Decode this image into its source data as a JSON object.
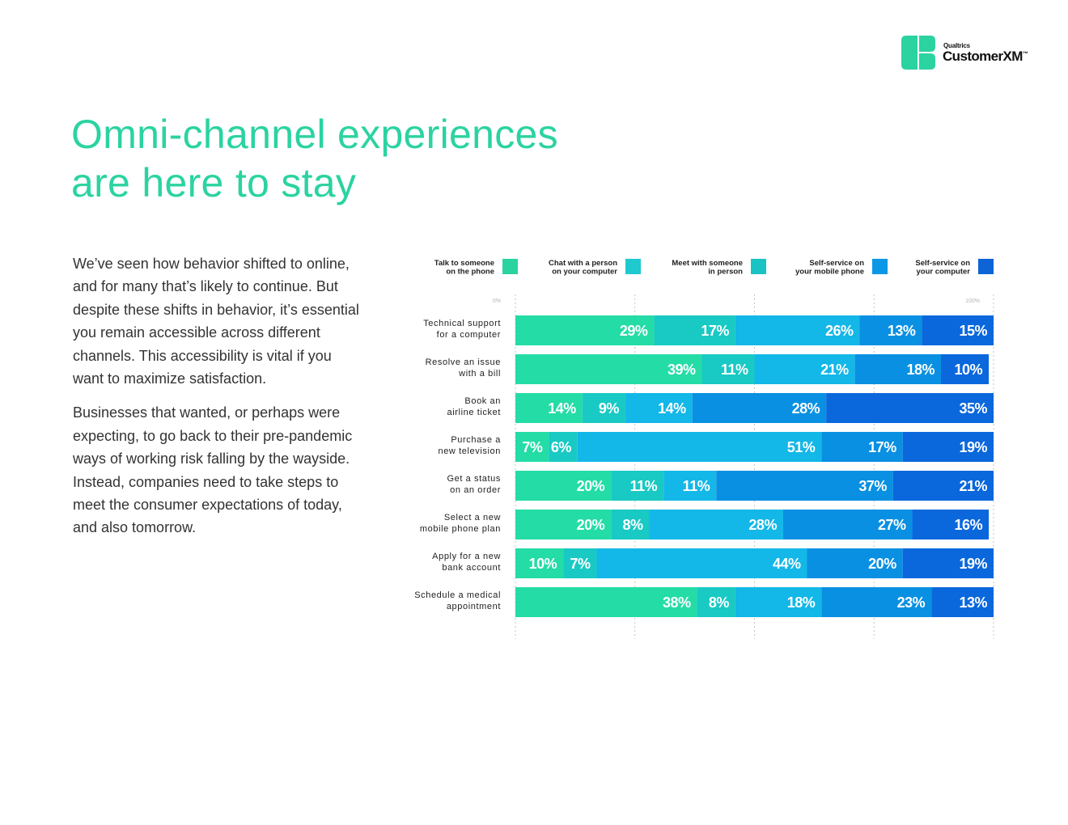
{
  "brand": {
    "small": "Qualtrics",
    "name": "CustomerXM",
    "tm": "™",
    "colors": {
      "mark": "#2bd3a1"
    }
  },
  "title": {
    "line1": "Omni-channel experiences",
    "line2": "are here to stay"
  },
  "body": {
    "paragraph1": "We’ve seen how behavior shifted to online, and for many that’s likely to continue. But despite these shifts in behavior, it’s essential you remain accessible across different channels. This accessibility is vital if you want to maximize satisfaction.",
    "paragraph2": "Businesses that wanted, or perhaps were expecting, to go back to their pre-pandemic ways of working risk falling by the wayside. Instead, companies need to take steps to meet the consumer expectations of today, and also tomorrow."
  },
  "chart_data": {
    "type": "bar",
    "orientation": "horizontal",
    "stacked": true,
    "xlim": [
      0,
      100
    ],
    "tick_labels": [
      "0%",
      "100%"
    ],
    "grid": true,
    "legend_position": "top",
    "categories": [
      [
        "Technical support",
        "for a computer"
      ],
      [
        "Resolve an issue",
        "with a bill"
      ],
      [
        "Book an",
        "airline ticket"
      ],
      [
        "Purchase a",
        "new television"
      ],
      [
        "Get a status",
        "on an order"
      ],
      [
        "Select a new",
        "mobile phone plan"
      ],
      [
        "Apply for a new",
        "bank account"
      ],
      [
        "Schedule a medical",
        "appointment"
      ]
    ],
    "series": [
      {
        "name": [
          "Talk to someone",
          "on the phone"
        ],
        "color": "#24dca6",
        "values": [
          29,
          39,
          14,
          7,
          20,
          20,
          10,
          38
        ]
      },
      {
        "name": [
          "Chat with a person",
          "on your computer"
        ],
        "color": "#19c9c4",
        "values": [
          17,
          11,
          9,
          6,
          11,
          8,
          7,
          8
        ]
      },
      {
        "name": [
          "Meet with someone",
          "in person"
        ],
        "color": "#13b7e8",
        "values": [
          26,
          21,
          14,
          51,
          11,
          28,
          44,
          18
        ]
      },
      {
        "name": [
          "Self-service on",
          "your mobile phone"
        ],
        "color": "#0990e2",
        "values": [
          13,
          18,
          28,
          17,
          37,
          27,
          20,
          23
        ]
      },
      {
        "name": [
          "Self-service on",
          "your computer"
        ],
        "color": "#0a67dc",
        "values": [
          15,
          10,
          35,
          19,
          21,
          16,
          19,
          13
        ]
      }
    ],
    "legend_colors": [
      "#2bd3a1",
      "#1ec9cf",
      "#19c3c4",
      "#0a98e6",
      "#0c64d6"
    ]
  }
}
